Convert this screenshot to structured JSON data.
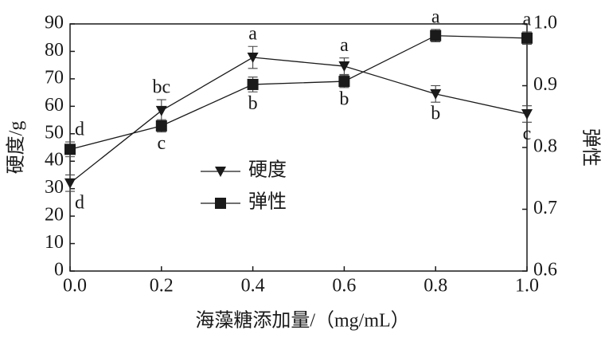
{
  "chart_data": {
    "type": "line",
    "xlabel": "海藻糖添加量/（mg/mL）",
    "ylabel": "硬度/g",
    "y2label": "弹性",
    "x": [
      0,
      0.2,
      0.4,
      0.6,
      0.8,
      1.0
    ],
    "xlim": [
      0,
      1
    ],
    "xticks": [
      {
        "value": 0,
        "label": "0.0"
      },
      0.2,
      0.4,
      0.6,
      0.8,
      {
        "value": 1,
        "label": "1.0"
      }
    ],
    "ylim": [
      0,
      90
    ],
    "yticks": [
      0,
      10,
      20,
      30,
      40,
      50,
      60,
      70,
      80,
      90
    ],
    "y2lim": [
      0.6,
      1.0
    ],
    "y2ticks": [
      0.6,
      0.7,
      0.8,
      0.9,
      {
        "value": 1,
        "label": "1.0"
      }
    ],
    "series": [
      {
        "name": "硬度",
        "color": "#1a1a1a",
        "marker": "triangle-down",
        "values": [
          32,
          58.4,
          77.8,
          74.6,
          64.5,
          57.2
        ],
        "errors": [
          3,
          4,
          4,
          3,
          3,
          3
        ],
        "significance": [
          "d",
          "bc",
          "a",
          "a",
          "b",
          "c"
        ]
      },
      {
        "name": "弹性",
        "color": "#1a1a1a",
        "marker": "square",
        "axis": "y2",
        "values": [
          0.797,
          0.835,
          0.902,
          0.907,
          0.981,
          0.977
        ],
        "errors": [
          0.012,
          0.01,
          0.012,
          0.01,
          0.01,
          0.01
        ],
        "significance": [
          "d",
          "c",
          "b",
          "b",
          "a",
          "a"
        ]
      }
    ]
  }
}
